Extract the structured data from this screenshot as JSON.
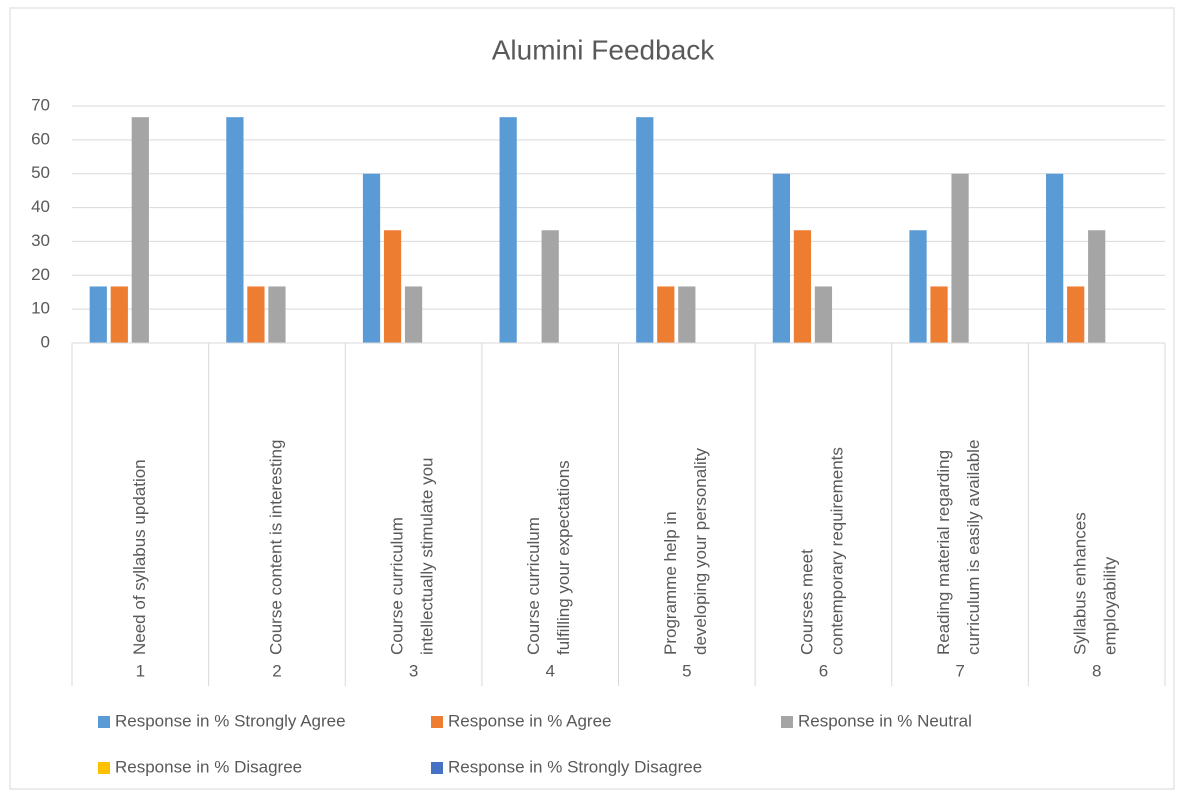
{
  "chart_data": {
    "type": "bar",
    "title": "Alumini Feedback",
    "groups": [
      "1",
      "2",
      "3",
      "4",
      "5",
      "6",
      "7",
      "8"
    ],
    "categories": [
      "Need of syllabus updation",
      "Course content is interesting",
      "Course curriculum intellectually stimulate you",
      "Course curriculum fulfilling your expectations",
      "Programme help in developing your personality",
      "Courses meet contemporary requirements",
      "Reading material regarding curriculum is easily available",
      "Syllabus enhances employability"
    ],
    "series": [
      {
        "name": "Response in % Strongly Agree",
        "color": "#5b9bd5",
        "values": [
          16.7,
          66.7,
          50,
          66.7,
          66.7,
          50,
          33.3,
          50
        ]
      },
      {
        "name": "Response in % Agree",
        "color": "#ed7d31",
        "values": [
          16.7,
          16.7,
          33.3,
          0,
          16.7,
          33.3,
          16.7,
          16.7
        ]
      },
      {
        "name": "Response in % Neutral",
        "color": "#a5a5a5",
        "values": [
          66.7,
          16.7,
          16.7,
          33.3,
          16.7,
          16.7,
          50,
          33.3
        ]
      },
      {
        "name": "Response in % Disagree",
        "color": "#ffc000",
        "values": [
          0,
          0,
          0,
          0,
          0,
          0,
          0,
          0
        ]
      },
      {
        "name": "Response in % Strongly Disagree",
        "color": "#4472c4",
        "values": [
          0,
          0,
          0,
          0,
          0,
          0,
          0,
          0
        ]
      }
    ],
    "ylim": [
      0,
      70
    ],
    "yticks": [
      0,
      10,
      20,
      30,
      40,
      50,
      60,
      70
    ],
    "grid": true
  }
}
